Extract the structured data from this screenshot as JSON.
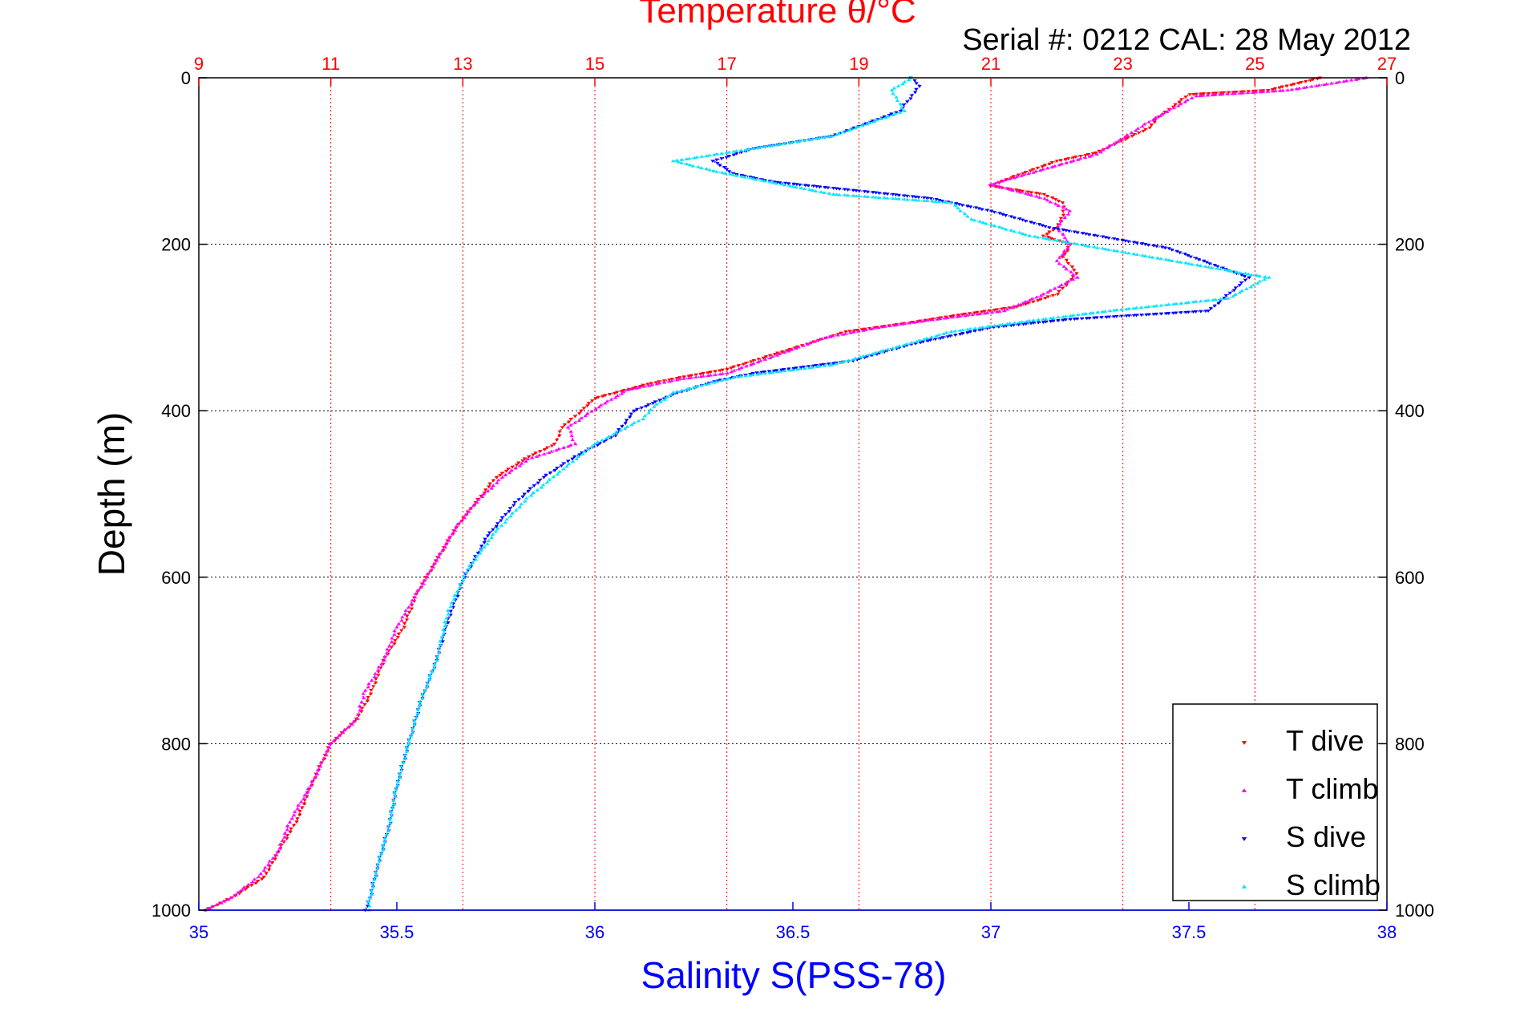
{
  "chart_data": {
    "type": "scatter",
    "title": "Temperature θ/°C",
    "subtitle": "Serial #: 0212  CAL: 28 May 2012",
    "xlabel": "Salinity S(PSS-78)",
    "ylabel": "Depth (m)",
    "colors": {
      "temperature_axis": "#ff0000",
      "salinity_axis": "#0000ff",
      "T dive": "#ff0000",
      "T climb": "#ff00ff",
      "S dive": "#0000ff",
      "S climb": "#00e5ff"
    },
    "temperature_axis": {
      "position": "top",
      "range": [
        9,
        27
      ],
      "ticks": [
        "9",
        "11",
        "13",
        "15",
        "17",
        "19",
        "21",
        "23",
        "25",
        "27"
      ]
    },
    "salinity_axis": {
      "position": "bottom",
      "range": [
        35,
        38
      ],
      "ticks": [
        "35",
        "35.5",
        "36",
        "36.5",
        "37",
        "37.5",
        "38"
      ]
    },
    "depth_axis": {
      "range": [
        0,
        1000
      ],
      "reversed": true,
      "ticks": [
        "0",
        "200",
        "400",
        "600",
        "800",
        "1000"
      ]
    },
    "grid": true,
    "legend": {
      "placement": "bottom-right",
      "entries": [
        "T dive",
        "T climb",
        "S dive",
        "S climb"
      ]
    },
    "series": [
      {
        "name": "T dive",
        "axis": "temperature",
        "marker": "triangle-down",
        "points": [
          [
            26.0,
            0
          ],
          [
            25.2,
            15
          ],
          [
            24.0,
            20
          ],
          [
            23.5,
            50
          ],
          [
            23.4,
            60
          ],
          [
            22.6,
            90
          ],
          [
            22.0,
            100
          ],
          [
            21.3,
            120
          ],
          [
            21.0,
            130
          ],
          [
            21.8,
            140
          ],
          [
            22.1,
            150
          ],
          [
            22.1,
            165
          ],
          [
            22.0,
            180
          ],
          [
            21.8,
            190
          ],
          [
            22.2,
            200
          ],
          [
            22.1,
            215
          ],
          [
            22.3,
            235
          ],
          [
            22.0,
            260
          ],
          [
            21.4,
            275
          ],
          [
            20.5,
            285
          ],
          [
            19.7,
            295
          ],
          [
            18.8,
            305
          ],
          [
            18.2,
            320
          ],
          [
            17.6,
            335
          ],
          [
            17.0,
            350
          ],
          [
            16.3,
            360
          ],
          [
            15.8,
            368
          ],
          [
            15.0,
            385
          ],
          [
            14.8,
            400
          ],
          [
            14.5,
            420
          ],
          [
            14.4,
            440
          ],
          [
            14.0,
            455
          ],
          [
            13.5,
            480
          ],
          [
            13.2,
            510
          ],
          [
            12.9,
            540
          ],
          [
            12.6,
            580
          ],
          [
            12.3,
            620
          ],
          [
            12.1,
            660
          ],
          [
            11.8,
            700
          ],
          [
            11.6,
            740
          ],
          [
            11.4,
            770
          ],
          [
            11.0,
            800
          ],
          [
            10.7,
            850
          ],
          [
            10.5,
            890
          ],
          [
            10.2,
            930
          ],
          [
            10.0,
            960
          ],
          [
            9.5,
            985
          ],
          [
            9.1,
            1000
          ]
        ]
      },
      {
        "name": "T climb",
        "axis": "temperature",
        "marker": "triangle-up",
        "points": [
          [
            26.7,
            0
          ],
          [
            25.5,
            15
          ],
          [
            24.1,
            22
          ],
          [
            23.5,
            48
          ],
          [
            22.6,
            92
          ],
          [
            21.8,
            110
          ],
          [
            21.0,
            128
          ],
          [
            21.8,
            145
          ],
          [
            22.2,
            160
          ],
          [
            22.0,
            180
          ],
          [
            22.2,
            200
          ],
          [
            22.0,
            220
          ],
          [
            22.3,
            240
          ],
          [
            21.8,
            260
          ],
          [
            21.2,
            280
          ],
          [
            20.0,
            292
          ],
          [
            19.3,
            300
          ],
          [
            18.5,
            312
          ],
          [
            17.7,
            335
          ],
          [
            17.0,
            355
          ],
          [
            16.3,
            362
          ],
          [
            15.5,
            375
          ],
          [
            15.0,
            398
          ],
          [
            14.6,
            420
          ],
          [
            14.7,
            440
          ],
          [
            14.0,
            458
          ],
          [
            13.6,
            480
          ],
          [
            13.2,
            510
          ],
          [
            12.9,
            540
          ],
          [
            12.6,
            580
          ],
          [
            12.3,
            620
          ],
          [
            12.0,
            660
          ],
          [
            11.8,
            700
          ],
          [
            11.5,
            740
          ],
          [
            11.4,
            770
          ],
          [
            11.0,
            800
          ],
          [
            10.7,
            850
          ],
          [
            10.4,
            890
          ],
          [
            10.2,
            930
          ],
          [
            9.9,
            960
          ],
          [
            9.5,
            985
          ],
          [
            9.1,
            1000
          ]
        ]
      },
      {
        "name": "S dive",
        "axis": "salinity",
        "marker": "triangle-down",
        "points": [
          [
            36.8,
            0
          ],
          [
            36.82,
            10
          ],
          [
            36.77,
            40
          ],
          [
            36.6,
            70
          ],
          [
            36.4,
            85
          ],
          [
            36.3,
            100
          ],
          [
            36.35,
            115
          ],
          [
            36.45,
            125
          ],
          [
            36.85,
            145
          ],
          [
            37.0,
            160
          ],
          [
            37.15,
            180
          ],
          [
            37.45,
            205
          ],
          [
            37.65,
            240
          ],
          [
            37.55,
            280
          ],
          [
            37.2,
            290
          ],
          [
            37.0,
            300
          ],
          [
            36.8,
            320
          ],
          [
            36.65,
            340
          ],
          [
            36.4,
            355
          ],
          [
            36.3,
            365
          ],
          [
            36.2,
            380
          ],
          [
            36.1,
            400
          ],
          [
            36.05,
            430
          ],
          [
            35.95,
            455
          ],
          [
            35.87,
            480
          ],
          [
            35.8,
            510
          ],
          [
            35.73,
            550
          ],
          [
            35.67,
            600
          ],
          [
            35.63,
            650
          ],
          [
            35.6,
            700
          ],
          [
            35.56,
            750
          ],
          [
            35.53,
            800
          ],
          [
            35.5,
            850
          ],
          [
            35.48,
            900
          ],
          [
            35.45,
            950
          ],
          [
            35.43,
            990
          ],
          [
            35.42,
            1000
          ]
        ]
      },
      {
        "name": "S climb",
        "axis": "salinity",
        "marker": "triangle-up",
        "points": [
          [
            36.8,
            0
          ],
          [
            36.75,
            15
          ],
          [
            36.78,
            40
          ],
          [
            36.6,
            70
          ],
          [
            36.4,
            85
          ],
          [
            36.2,
            100
          ],
          [
            36.3,
            112
          ],
          [
            36.6,
            140
          ],
          [
            36.9,
            150
          ],
          [
            36.95,
            170
          ],
          [
            37.1,
            190
          ],
          [
            37.4,
            215
          ],
          [
            37.7,
            240
          ],
          [
            37.6,
            265
          ],
          [
            37.3,
            280
          ],
          [
            37.1,
            292
          ],
          [
            36.9,
            305
          ],
          [
            36.75,
            325
          ],
          [
            36.6,
            345
          ],
          [
            36.35,
            360
          ],
          [
            36.2,
            378
          ],
          [
            36.15,
            395
          ],
          [
            36.12,
            410
          ],
          [
            36.0,
            440
          ],
          [
            35.92,
            470
          ],
          [
            35.83,
            505
          ],
          [
            35.75,
            545
          ],
          [
            35.68,
            590
          ],
          [
            35.63,
            640
          ],
          [
            35.6,
            700
          ],
          [
            35.56,
            750
          ],
          [
            35.53,
            800
          ],
          [
            35.5,
            850
          ],
          [
            35.48,
            900
          ],
          [
            35.45,
            950
          ],
          [
            35.43,
            990
          ],
          [
            35.43,
            1000
          ]
        ]
      }
    ]
  }
}
